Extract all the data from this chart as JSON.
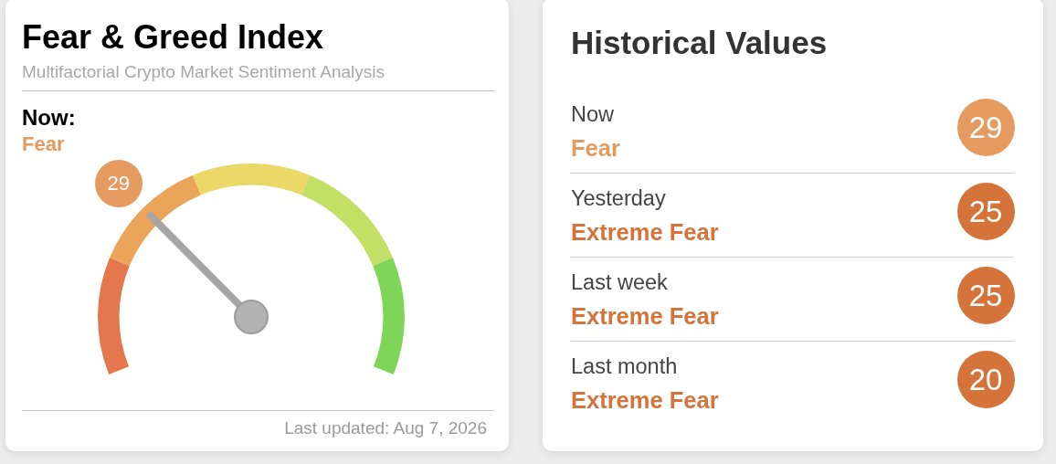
{
  "chart_data": [
    {
      "type": "donut",
      "title": "Fear & Greed Index",
      "subtitle": "Multifactorial Crypto Market Sentiment Analysis",
      "categories": [
        null,
        "29",
        null,
        null,
        null
      ],
      "values": [
        20,
        20,
        20,
        20,
        20
      ],
      "colors": [
        "#e4774d",
        "#eba55b",
        "#ebd867",
        "#c2df66",
        "#7fd557"
      ],
      "needle": "29",
      "annotations": [
        "Now:",
        "Fear",
        "Last updated: Aug 7, 2026"
      ]
    },
    {
      "type": "other",
      "title": "Historical Values",
      "values": [
        29,
        25,
        25,
        20
      ],
      "colors": [
        "#e59a5f",
        "#d4733a",
        "#d4733a",
        "#d4733a"
      ],
      "annotations": [
        "Now",
        "Fear",
        "Yesterday",
        "Extreme Fear",
        "Last week",
        "Extreme Fear",
        "Last month",
        "Extreme Fear"
      ],
      "data_labels": true
    }
  ]
}
